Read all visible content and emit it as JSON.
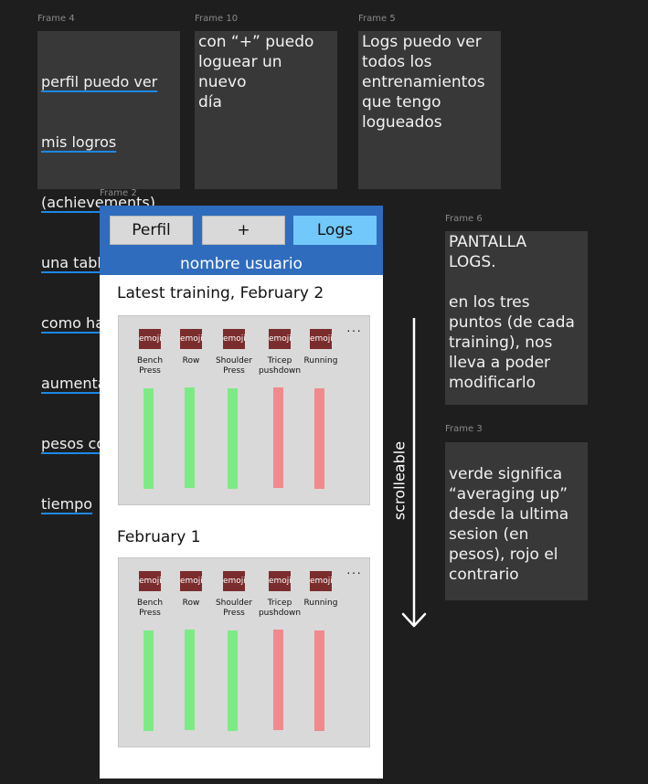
{
  "frames": {
    "frame4": {
      "label": "Frame 4",
      "text_lines": [
        "perfil puedo ver",
        "mis logros",
        "(achievements),",
        "una tabla de",
        "como han",
        "aumentado mis",
        "pesos con el",
        "tiempo"
      ]
    },
    "frame10": {
      "label": "Frame 10",
      "text": "con “+” puedo\nloguear un nuevo\ndía"
    },
    "frame5": {
      "label": "Frame 5",
      "text": "Logs puedo ver\ntodos los\nentrenamientos\nque tengo\nlogueados"
    },
    "frame2": {
      "label": "Frame 2"
    },
    "frame6": {
      "label": "Frame 6",
      "text": "PANTALLA\nLOGS.\n\nen los tres\npuntos (de cada\ntraining), nos\nlleva a poder\nmodificarlo"
    },
    "frame3": {
      "label": "Frame 3",
      "text": "verde significa\n“averaging up”\ndesde la ultima\nsesion (en\npesos), rojo el\ncontrario"
    }
  },
  "app": {
    "nav": {
      "perfil": "Perfil",
      "plus": "+",
      "logs": "Logs"
    },
    "username": "nombre usuario",
    "active_color": "#72c8fa",
    "header_color": "#2f6cbd"
  },
  "trainings": [
    {
      "title": "Latest training, February 2",
      "exercises": [
        {
          "emoji": "emoji",
          "name": "Bench\nPress",
          "trend": "up"
        },
        {
          "emoji": "emoji",
          "name": "Row",
          "trend": "up"
        },
        {
          "emoji": "emoji",
          "name": "Shoulder\nPress",
          "trend": "up"
        },
        {
          "emoji": "emoji",
          "name": "Tricep\npushdown",
          "trend": "down"
        },
        {
          "emoji": "emoji",
          "name": "Running",
          "trend": "down"
        }
      ],
      "more": "···"
    },
    {
      "title": "February 1",
      "exercises": [
        {
          "emoji": "emoji",
          "name": "Bench\nPress",
          "trend": "up"
        },
        {
          "emoji": "emoji",
          "name": "Row",
          "trend": "up"
        },
        {
          "emoji": "emoji",
          "name": "Shoulder\nPress",
          "trend": "up"
        },
        {
          "emoji": "emoji",
          "name": "Tricep\npushdown",
          "trend": "down"
        },
        {
          "emoji": "emoji",
          "name": "Running",
          "trend": "down"
        }
      ],
      "more": "···"
    }
  ],
  "colors": {
    "up": "#7deb85",
    "down": "#f08a8c"
  },
  "scroll_label": "scrolleable"
}
